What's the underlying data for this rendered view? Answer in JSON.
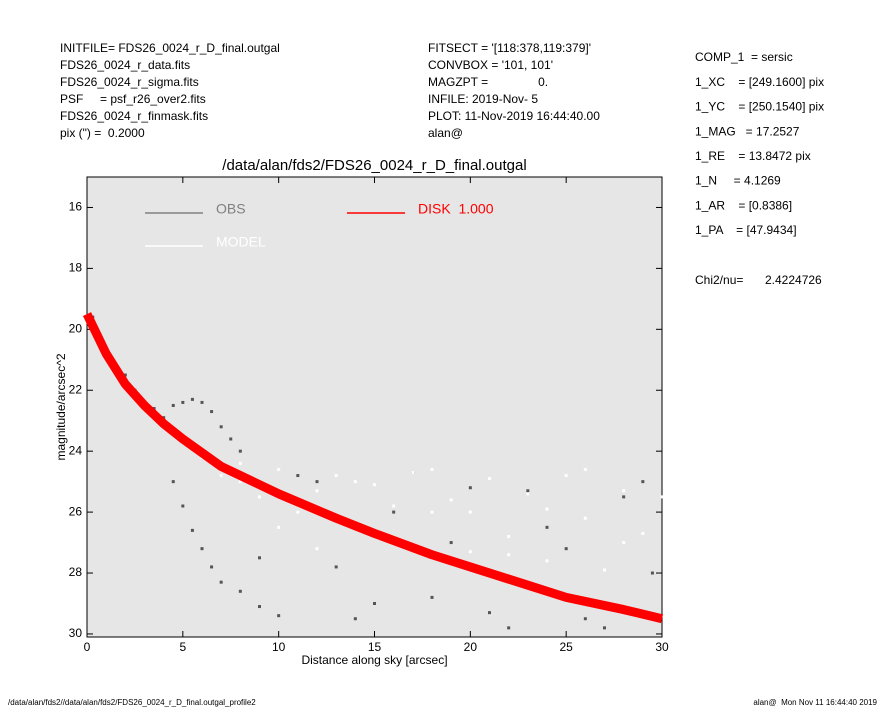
{
  "header": {
    "left": [
      "INITFILE= FDS26_0024_r_D_final.outgal",
      "FDS26_0024_r_data.fits",
      "FDS26_0024_r_sigma.fits",
      "PSF     = psf_r26_over2.fits",
      "FDS26_0024_r_finmask.fits",
      "pix (\") =  0.2000"
    ],
    "middle": [
      "FITSECT = '[118:378,119:379]'",
      "CONVBOX = '101, 101'",
      "MAGZPT =               0.",
      "INFILE: 2019-Nov- 5",
      "PLOT: 11-Nov-2019 16:44:40.00",
      "alan@"
    ],
    "right": [
      "COMP_1  = sersic",
      "1_XC    = [249.1600] pix",
      "1_YC    = [250.1540] pix",
      "1_MAG   = 17.2527",
      "1_RE    = 13.8472 pix",
      "1_N     = 4.1269",
      "1_AR    = [0.8386]",
      "1_PA    = [47.9434]"
    ],
    "chi_label": "Chi2/nu=",
    "chi_value": "2.4224726"
  },
  "footer": {
    "left": "/data/alan/fds2//data/alan/fds2/FDS26_0024_r_D_final.outgal_profile2",
    "right": "alan@  Mon Nov 11 16:44:40 2019"
  },
  "chart_data": {
    "type": "scatter",
    "title": "/data/alan/fds2/FDS26_0024_r_D_final.outgal",
    "x_label": "Distance along sky [arcsec]",
    "y_label": "magnitude/arcsec^2",
    "xlim": [
      0,
      30
    ],
    "ylim": [
      30.1,
      15
    ],
    "xticks": [
      0,
      5,
      10,
      15,
      20,
      25,
      30
    ],
    "yticks": [
      16,
      18,
      20,
      22,
      24,
      26,
      28,
      30
    ],
    "grid": false,
    "background": "#e6e6e6",
    "series": [
      {
        "name": "OBS",
        "color": "#555555",
        "legend_color": "#808080",
        "marker": "point",
        "x": [
          0.3,
          0.8,
          1.5,
          2,
          2.5,
          3,
          3.5,
          4,
          4.5,
          5,
          5.5,
          6,
          6.5,
          7,
          7.5,
          8,
          4.5,
          5,
          5.5,
          6,
          6.5,
          7,
          8,
          9,
          10,
          9,
          12,
          14,
          16,
          18,
          20,
          22,
          24,
          26,
          28,
          29.5,
          11,
          15,
          19,
          23,
          27,
          13,
          17,
          21,
          25,
          29
        ],
        "values": [
          19.6,
          20.5,
          21.3,
          21.5,
          22,
          22.4,
          22.6,
          22.9,
          22.5,
          22.4,
          22.3,
          22.4,
          22.7,
          23.2,
          23.6,
          24,
          25,
          25.8,
          26.6,
          27.2,
          27.8,
          28.3,
          28.6,
          29.1,
          29.4,
          27.5,
          25,
          29.5,
          26,
          28.8,
          25.2,
          29.8,
          26.5,
          29.5,
          25.5,
          28,
          24.8,
          29,
          27,
          25.3,
          29.8,
          27.8,
          24.7,
          29.3,
          27.2,
          25
        ]
      },
      {
        "name": "MODEL",
        "color": "#ffffff",
        "legend_color": "#ffffff",
        "marker": "point",
        "x": [
          6,
          7,
          8,
          9,
          10,
          11,
          12,
          13,
          14,
          15,
          16,
          17,
          18,
          19,
          20,
          21,
          22,
          23,
          24,
          25,
          26,
          27,
          28,
          29,
          8,
          10,
          12,
          14,
          16,
          18,
          20,
          22,
          24,
          26,
          28,
          30
        ],
        "values": [
          24.2,
          24.8,
          25,
          25.5,
          24.6,
          26,
          25.3,
          24.8,
          26.4,
          25.1,
          27,
          24.7,
          26,
          25.6,
          27.3,
          24.9,
          26.8,
          25.4,
          27.6,
          24.8,
          26.2,
          27.9,
          25.3,
          26.7,
          24.4,
          26.5,
          27.2,
          25,
          25.8,
          24.6,
          26,
          27.4,
          25.9,
          24.6,
          27,
          25.5
        ]
      },
      {
        "name": "DISK  1.000",
        "color": "#ff0000",
        "legend_color": "#ff0000",
        "marker": "line",
        "x": [
          0,
          1,
          2,
          3,
          4,
          5,
          7,
          10,
          13,
          15,
          18,
          20,
          23,
          25,
          28,
          30
        ],
        "values": [
          19.5,
          20.8,
          21.8,
          22.5,
          23.1,
          23.6,
          24.5,
          25.4,
          26.2,
          26.7,
          27.4,
          27.8,
          28.4,
          28.8,
          29.2,
          29.5
        ]
      }
    ]
  }
}
